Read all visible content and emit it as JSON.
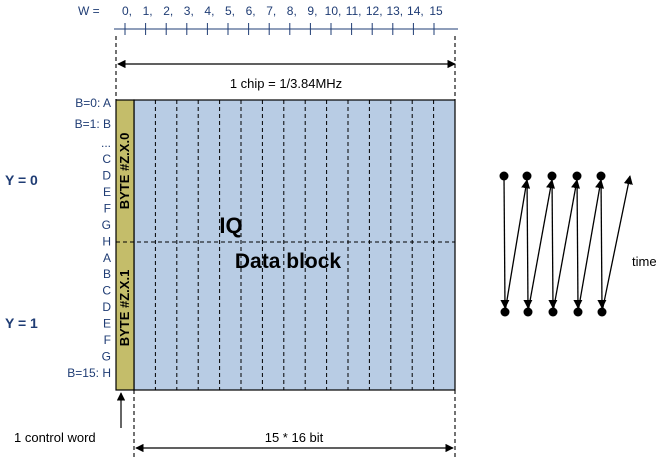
{
  "w_axis": {
    "label": "W =",
    "ticks": [
      "0,",
      "1,",
      "2,",
      "3,",
      "4,",
      "5,",
      "6,",
      "7,",
      "8,",
      "9,",
      "10,",
      "11,",
      "12,",
      "13,",
      "14,",
      "15"
    ]
  },
  "chip_label": "1 chip = 1/3.84MHz",
  "byte_labels": [
    "BYTE #Z.X.0",
    "BYTE #Z.X.1"
  ],
  "block_title": "IQ",
  "block_subtitle": "Data block",
  "y_labels": [
    "Y = 0",
    "Y = 1"
  ],
  "row_labels": [
    "B=0: A",
    "B=1: B",
    "...",
    "C",
    "D",
    "E",
    "F",
    "G",
    "H",
    "A",
    "B",
    "C",
    "D",
    "E",
    "F",
    "G",
    "B=15: H"
  ],
  "control_word_label": "1 control word",
  "data_width_label": "15 * 16 bit",
  "time_label": "time",
  "colors": {
    "data_block": "#b8cce4",
    "control_column": "#c4bd6a",
    "axis": "#1f3c74",
    "line": "#000000"
  }
}
